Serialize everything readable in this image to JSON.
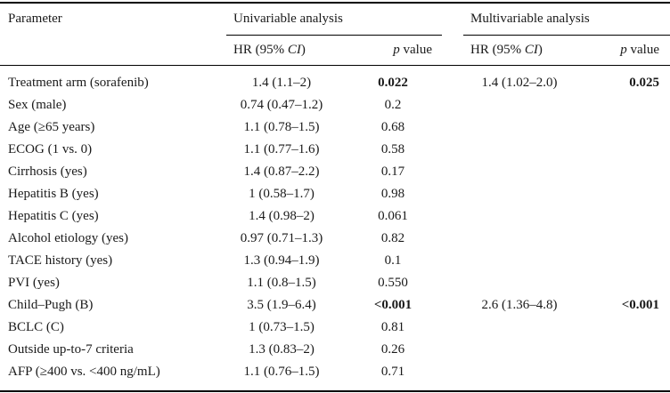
{
  "header": {
    "parameter": "Parameter",
    "univariable": "Univariable analysis",
    "multivariable": "Multivariable analysis",
    "hr_prefix": "HR (95% ",
    "hr_ci": "CI",
    "hr_suffix": ")",
    "p_italic": "p",
    "p_rest": " value"
  },
  "rows": [
    {
      "param": "Treatment arm (sorafenib)",
      "hr1": "1.4 (1.1–2)",
      "p1": "0.022",
      "p1_bold": true,
      "hr2": "1.4 (1.02–2.0)",
      "p2": "0.025",
      "p2_bold": true
    },
    {
      "param": "Sex (male)",
      "hr1": "0.74 (0.47–1.2)",
      "p1": "0.2",
      "p1_bold": false,
      "hr2": "",
      "p2": "",
      "p2_bold": false
    },
    {
      "param": "Age (≥65 years)",
      "hr1": "1.1 (0.78–1.5)",
      "p1": "0.68",
      "p1_bold": false,
      "hr2": "",
      "p2": "",
      "p2_bold": false
    },
    {
      "param": "ECOG (1 vs. 0)",
      "hr1": "1.1 (0.77–1.6)",
      "p1": "0.58",
      "p1_bold": false,
      "hr2": "",
      "p2": "",
      "p2_bold": false
    },
    {
      "param": "Cirrhosis (yes)",
      "hr1": "1.4 (0.87–2.2)",
      "p1": "0.17",
      "p1_bold": false,
      "hr2": "",
      "p2": "",
      "p2_bold": false
    },
    {
      "param": "Hepatitis B (yes)",
      "hr1": "1 (0.58–1.7)",
      "p1": "0.98",
      "p1_bold": false,
      "hr2": "",
      "p2": "",
      "p2_bold": false
    },
    {
      "param": "Hepatitis C (yes)",
      "hr1": "1.4 (0.98–2)",
      "p1": "0.061",
      "p1_bold": false,
      "hr2": "",
      "p2": "",
      "p2_bold": false
    },
    {
      "param": "Alcohol etiology (yes)",
      "hr1": "0.97 (0.71–1.3)",
      "p1": "0.82",
      "p1_bold": false,
      "hr2": "",
      "p2": "",
      "p2_bold": false
    },
    {
      "param": "TACE history (yes)",
      "hr1": "1.3 (0.94–1.9)",
      "p1": "0.1",
      "p1_bold": false,
      "hr2": "",
      "p2": "",
      "p2_bold": false
    },
    {
      "param": "PVI (yes)",
      "hr1": "1.1 (0.8–1.5)",
      "p1": "0.550",
      "p1_bold": false,
      "hr2": "",
      "p2": "",
      "p2_bold": false
    },
    {
      "param": "Child–Pugh (B)",
      "hr1": "3.5 (1.9–6.4)",
      "p1": "<0.001",
      "p1_bold": true,
      "hr2": "2.6 (1.36–4.8)",
      "p2": "<0.001",
      "p2_bold": true
    },
    {
      "param": "BCLC (C)",
      "hr1": "1 (0.73–1.5)",
      "p1": "0.81",
      "p1_bold": false,
      "hr2": "",
      "p2": "",
      "p2_bold": false
    },
    {
      "param": "Outside up-to-7 criteria",
      "hr1": "1.3 (0.83–2)",
      "p1": "0.26",
      "p1_bold": false,
      "hr2": "",
      "p2": "",
      "p2_bold": false
    },
    {
      "param": "AFP (≥400 vs. <400 ng/mL)",
      "hr1": "1.1 (0.76–1.5)",
      "p1": "0.71",
      "p1_bold": false,
      "hr2": "",
      "p2": "",
      "p2_bold": false
    }
  ]
}
